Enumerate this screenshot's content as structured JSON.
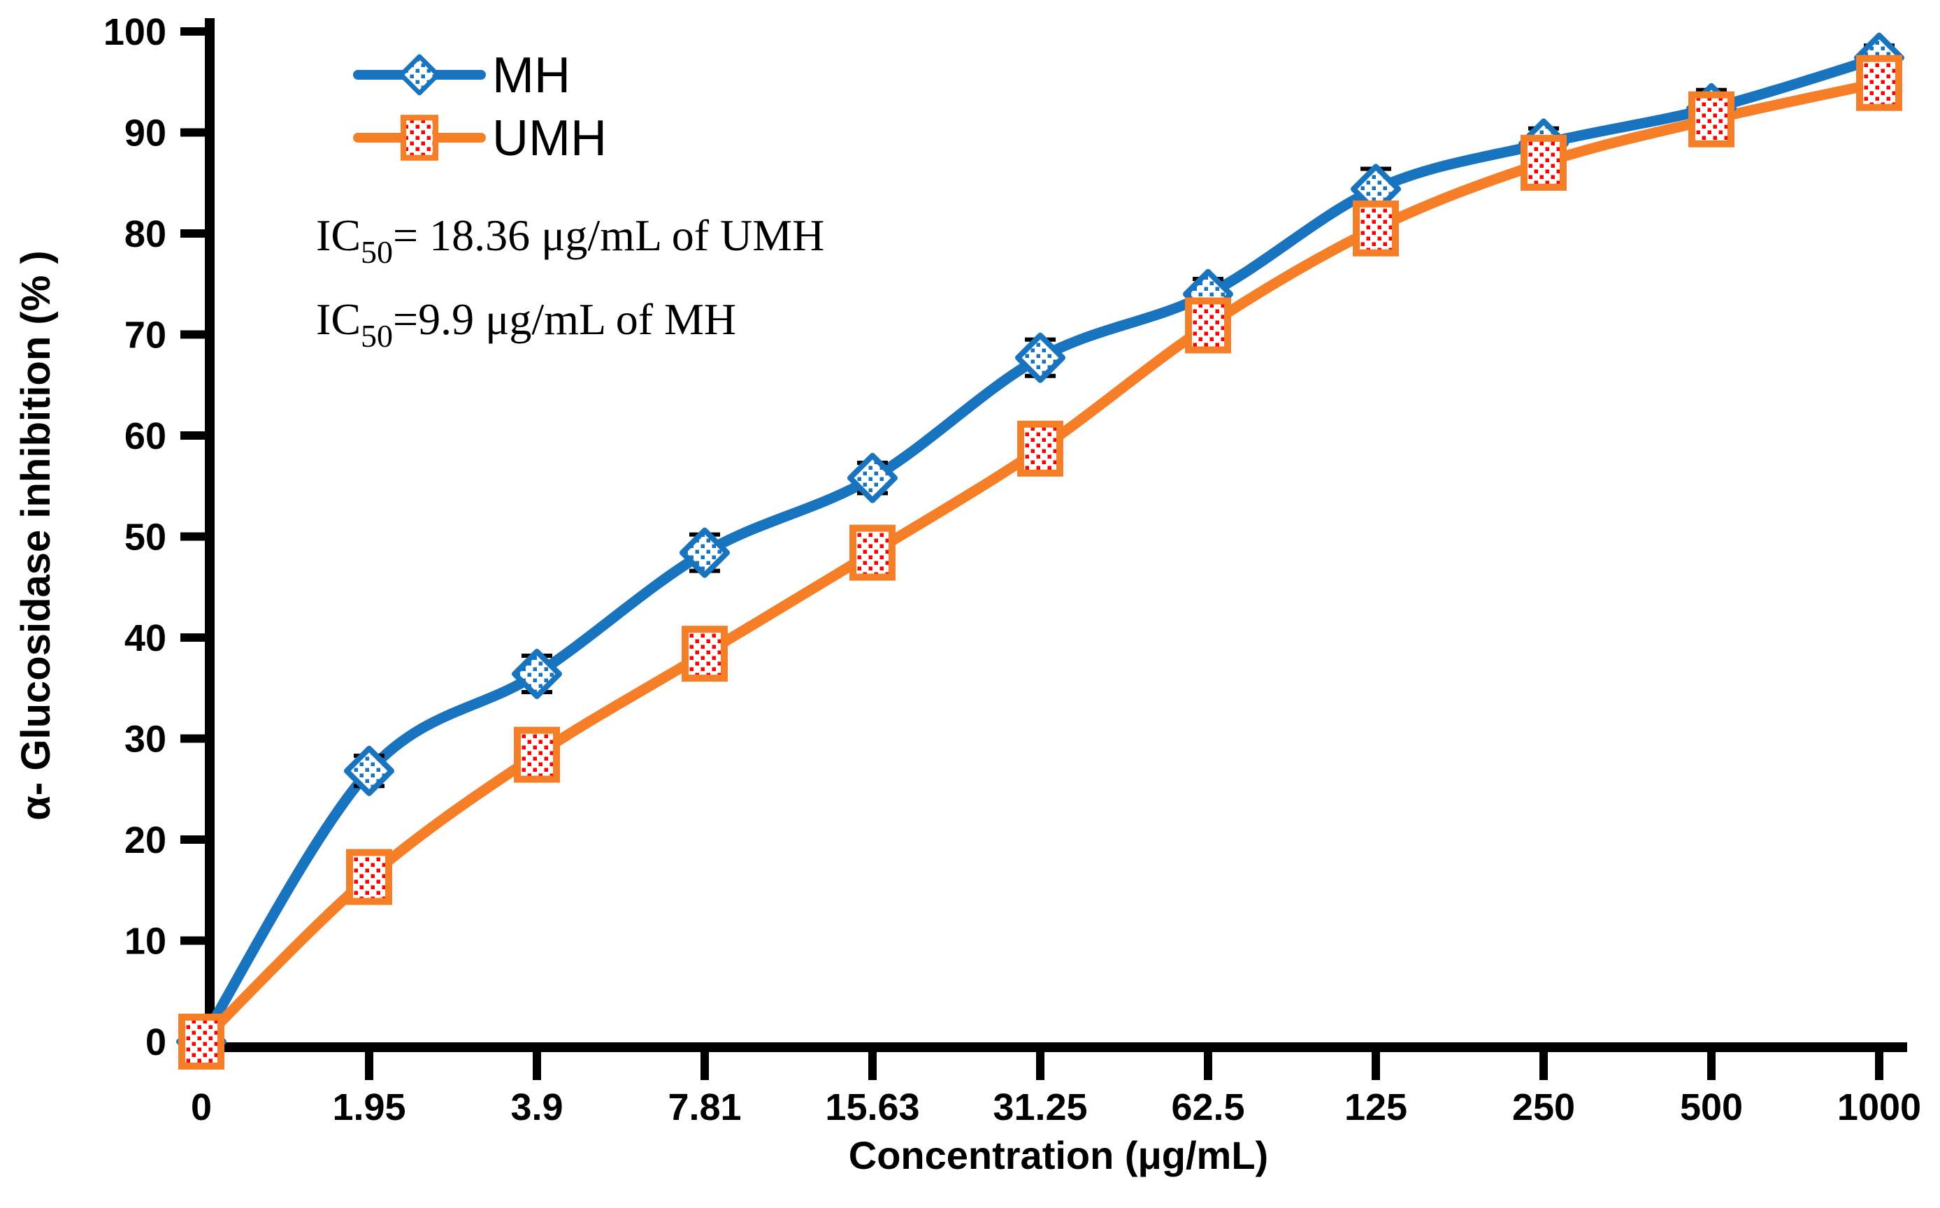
{
  "figure": {
    "background": "#ffffff",
    "text_color": "#000000",
    "error_bar_color": "#000000"
  },
  "chart_data": {
    "type": "line",
    "title": "",
    "xlabel": "Concentration (μg/mL)",
    "ylabel": "α- Glucosidase inhibition (% )",
    "categories": [
      "0",
      "1.95",
      "3.9",
      "7.81",
      "15.63",
      "31.25",
      "62.5",
      "125",
      "250",
      "500",
      "1000"
    ],
    "y_ticks": [
      0,
      10,
      20,
      30,
      40,
      50,
      60,
      70,
      80,
      90,
      100
    ],
    "ylim": [
      0,
      100
    ],
    "grid": false,
    "legend_position": "inside-top-left",
    "series": [
      {
        "name": "MH",
        "color": "#1874BE",
        "marker": "diamond",
        "dot_color": "#1874BE",
        "values": [
          0,
          26.8,
          36.4,
          48.4,
          55.8,
          67.7,
          74.0,
          84.4,
          88.9,
          92.4,
          97.4
        ],
        "errors": [
          0,
          1.5,
          1.8,
          1.8,
          1.5,
          1.8,
          1.5,
          2.0,
          1.5,
          1.8,
          1.2
        ]
      },
      {
        "name": "UMH",
        "color": "#F57E27",
        "marker": "square",
        "dot_color": "#FF0000",
        "values": [
          0,
          16.3,
          28.4,
          38.4,
          48.4,
          58.7,
          70.9,
          80.5,
          87.0,
          91.3,
          94.9
        ],
        "errors": [
          0.9,
          1.4,
          2.0,
          1.8,
          2.3,
          2.0,
          2.0,
          2.4,
          1.7,
          2.2,
          1.5
        ]
      }
    ],
    "annotations": [
      {
        "prefix": "IC",
        "sub": "50",
        "text": "= 18.36 μg/mL of UMH"
      },
      {
        "prefix": "IC",
        "sub": "50",
        "text": "=9.9 μg/mL of MH"
      }
    ]
  }
}
